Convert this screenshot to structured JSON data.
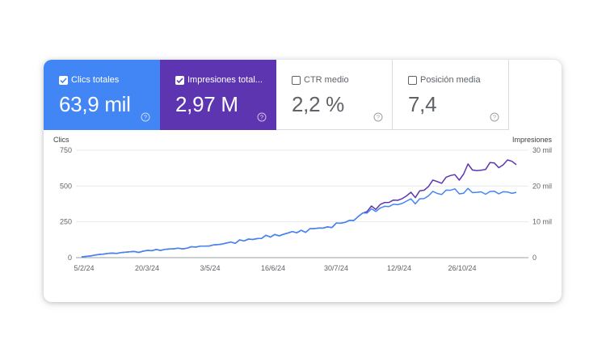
{
  "tiles": [
    {
      "label": "Clics totales",
      "value": "63,9 mil",
      "checked": true,
      "color": "#4285f4"
    },
    {
      "label": "Impresiones total...",
      "value": "2,97 M",
      "checked": true,
      "color": "#5e35b1"
    },
    {
      "label": "CTR medio",
      "value": "2,2 %",
      "checked": false,
      "color": "#ffffff"
    },
    {
      "label": "Posición media",
      "value": "7,4",
      "checked": false,
      "color": "#ffffff"
    }
  ],
  "icons": {
    "help": "help-circle-icon",
    "check": "check-icon"
  },
  "chart_data": {
    "type": "line",
    "left_axis": {
      "title": "Clics",
      "ticks": [
        "0",
        "250",
        "500",
        "750"
      ],
      "range": [
        0,
        750
      ]
    },
    "right_axis": {
      "title": "Impresiones",
      "ticks": [
        "0",
        "10 mil",
        "20 mil",
        "30 mil"
      ],
      "range": [
        0,
        30000
      ]
    },
    "x_ticks": [
      "5/2/24",
      "20/3/24",
      "3/5/24",
      "16/6/24",
      "30/7/24",
      "12/9/24",
      "26/10/24"
    ],
    "grid": true,
    "series": [
      {
        "name": "Clics totales",
        "axis": "left",
        "color": "#4285f4",
        "values": [
          5,
          8,
          12,
          18,
          22,
          25,
          28,
          32,
          30,
          35,
          38,
          40,
          42,
          38,
          45,
          50,
          48,
          55,
          52,
          60,
          58,
          62,
          65,
          60,
          70,
          75,
          72,
          80,
          78,
          85,
          90,
          88,
          95,
          100,
          110,
          105,
          120,
          115,
          130,
          125,
          140,
          135,
          150,
          145,
          160,
          155,
          170,
          165,
          180,
          175,
          190,
          185,
          200,
          195,
          210,
          205,
          220,
          215,
          230,
          240,
          250,
          260,
          270,
          280,
          300,
          320,
          340,
          330,
          350,
          340,
          360,
          380,
          370,
          390,
          380,
          400,
          390,
          410,
          420,
          430,
          440,
          460,
          450,
          470,
          480,
          460,
          440,
          470,
          480,
          460,
          450,
          440,
          460,
          470,
          460,
          450,
          440,
          460,
          470,
          450
        ]
      },
      {
        "name": "Impresiones totales",
        "axis": "right",
        "color": "#5e35b1",
        "values": [
          200,
          350,
          500,
          700,
          900,
          1000,
          1150,
          1300,
          1250,
          1400,
          1550,
          1600,
          1700,
          1550,
          1800,
          2000,
          1950,
          2200,
          2100,
          2400,
          2350,
          2500,
          2600,
          2450,
          2800,
          3000,
          2900,
          3200,
          3150,
          3400,
          3600,
          3500,
          3800,
          4000,
          4400,
          4200,
          4800,
          4600,
          5200,
          5000,
          5600,
          5400,
          6000,
          5800,
          6400,
          6200,
          6800,
          6600,
          7200,
          7000,
          7600,
          7400,
          8000,
          7800,
          8400,
          8200,
          8800,
          8600,
          9200,
          9600,
          10000,
          10400,
          10800,
          11200,
          12000,
          13200,
          14400,
          13800,
          15000,
          14600,
          15600,
          16400,
          16000,
          17000,
          16600,
          17800,
          17400,
          18600,
          19200,
          19800,
          20600,
          21800,
          21200,
          22400,
          23400,
          22200,
          21400,
          24400,
          26000,
          24800,
          24000,
          23400,
          25600,
          27000,
          26200,
          25400,
          24800,
          27400,
          28200,
          25600
        ]
      }
    ]
  }
}
